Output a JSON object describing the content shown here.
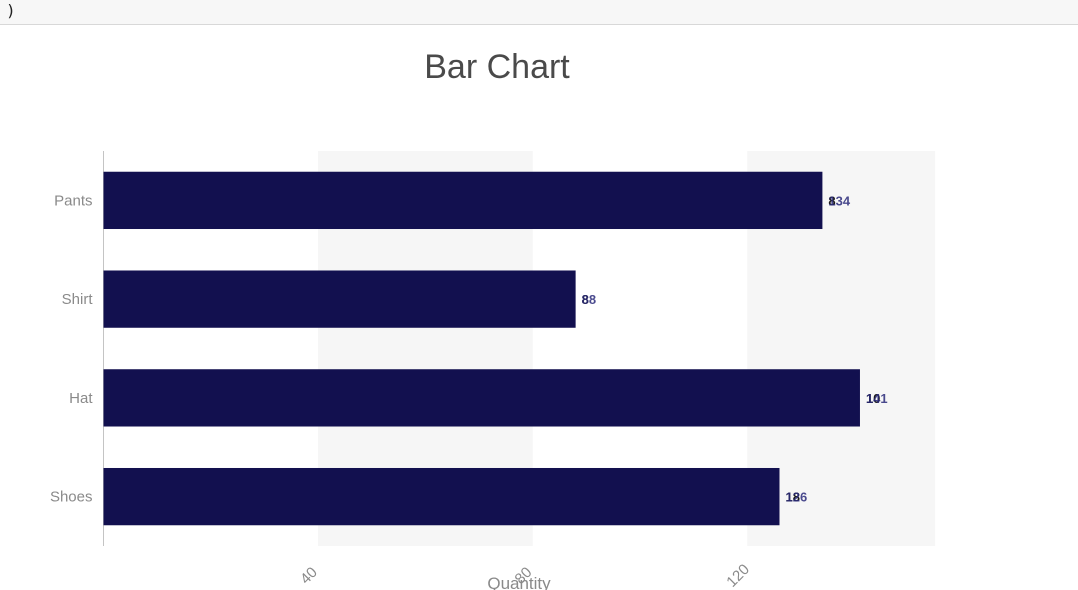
{
  "topbar": {
    "text": ")"
  },
  "chart_data": {
    "type": "bar",
    "orientation": "horizontal",
    "title": "Bar Chart",
    "xlabel": "Quantity",
    "ylabel": "",
    "categories": [
      "Pants",
      "Shirt",
      "Hat",
      "Shoes"
    ],
    "series": [
      {
        "values": [
          134,
          88,
          141,
          126
        ]
      }
    ],
    "data_labels": [
      [
        "8",
        "134"
      ],
      [
        "8",
        "88"
      ],
      [
        "10",
        "141"
      ],
      [
        "18",
        "126"
      ]
    ],
    "xlim": [
      0,
      155
    ],
    "xticks": [
      40,
      80,
      120
    ],
    "grid": "alternating vertical bands",
    "colors": {
      "bar": "#12104f",
      "band": "#f6f6f6",
      "label_a": "#1a1a1a",
      "label_b": "#2a2a7a"
    }
  }
}
